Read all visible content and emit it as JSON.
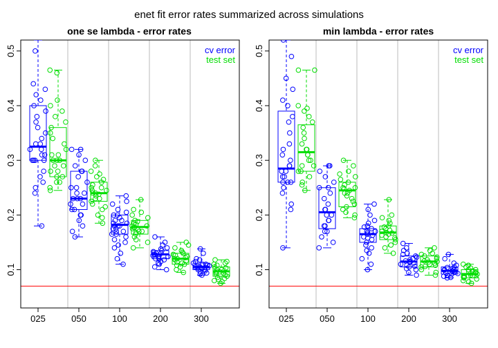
{
  "figure": {
    "title": "enet fit error rates summarized across simulations"
  },
  "colors": {
    "cv": "#0000ff",
    "test": "#00dd00",
    "baseline": "#ff0000",
    "divider": "#bbbbbb"
  },
  "chart_data": [
    {
      "type": "boxplot",
      "title": "one se lambda - error rates",
      "categories": [
        "025",
        "050",
        "100",
        "200",
        "300"
      ],
      "ylim": [
        0.03,
        0.52
      ],
      "yticks": [
        "0.1",
        "0.2",
        "0.3",
        "0.4",
        "0.5"
      ],
      "reference_line": 0.07,
      "legend": [
        "cv error",
        "test set"
      ],
      "series": [
        {
          "name": "cv error",
          "boxes": [
            {
              "min": 0.18,
              "q1": 0.3,
              "median": 0.325,
              "q3": 0.4,
              "max": 0.52,
              "points": [
                0.5,
                0.44,
                0.43,
                0.42,
                0.41,
                0.4,
                0.39,
                0.38,
                0.37,
                0.36,
                0.35,
                0.34,
                0.33,
                0.33,
                0.32,
                0.32,
                0.31,
                0.31,
                0.3,
                0.3,
                0.3,
                0.3,
                0.28,
                0.27,
                0.26,
                0.25,
                0.24,
                0.18
              ]
            },
            {
              "min": 0.16,
              "q1": 0.21,
              "median": 0.23,
              "q3": 0.28,
              "max": 0.32,
              "points": [
                0.32,
                0.32,
                0.31,
                0.3,
                0.29,
                0.28,
                0.28,
                0.27,
                0.26,
                0.25,
                0.25,
                0.24,
                0.24,
                0.23,
                0.23,
                0.23,
                0.22,
                0.22,
                0.21,
                0.21,
                0.2,
                0.2,
                0.19,
                0.18,
                0.17,
                0.16
              ]
            },
            {
              "min": 0.11,
              "q1": 0.165,
              "median": 0.182,
              "q3": 0.2,
              "max": 0.235,
              "points": [
                0.235,
                0.225,
                0.22,
                0.21,
                0.205,
                0.2,
                0.2,
                0.195,
                0.19,
                0.19,
                0.185,
                0.185,
                0.18,
                0.18,
                0.18,
                0.175,
                0.175,
                0.17,
                0.17,
                0.165,
                0.165,
                0.16,
                0.155,
                0.15,
                0.145,
                0.14,
                0.13,
                0.12,
                0.11
              ]
            },
            {
              "min": 0.1,
              "q1": 0.12,
              "median": 0.128,
              "q3": 0.135,
              "max": 0.16,
              "points": [
                0.16,
                0.15,
                0.145,
                0.14,
                0.138,
                0.135,
                0.133,
                0.13,
                0.13,
                0.128,
                0.127,
                0.126,
                0.125,
                0.124,
                0.122,
                0.12,
                0.12,
                0.118,
                0.115,
                0.112,
                0.11,
                0.105,
                0.1
              ]
            },
            {
              "min": 0.09,
              "q1": 0.1,
              "median": 0.105,
              "q3": 0.112,
              "max": 0.138,
              "points": [
                0.138,
                0.13,
                0.12,
                0.118,
                0.115,
                0.112,
                0.11,
                0.11,
                0.108,
                0.107,
                0.106,
                0.105,
                0.105,
                0.104,
                0.103,
                0.102,
                0.1,
                0.1,
                0.098,
                0.096,
                0.094,
                0.092,
                0.09
              ]
            }
          ]
        },
        {
          "name": "test set",
          "boxes": [
            {
              "min": 0.245,
              "q1": 0.27,
              "median": 0.3,
              "q3": 0.36,
              "max": 0.465,
              "points": [
                0.465,
                0.46,
                0.41,
                0.4,
                0.39,
                0.38,
                0.37,
                0.36,
                0.35,
                0.34,
                0.33,
                0.32,
                0.31,
                0.31,
                0.3,
                0.3,
                0.3,
                0.29,
                0.29,
                0.28,
                0.28,
                0.27,
                0.27,
                0.26,
                0.26,
                0.25,
                0.245
              ]
            },
            {
              "min": 0.185,
              "q1": 0.225,
              "median": 0.24,
              "q3": 0.26,
              "max": 0.3,
              "points": [
                0.3,
                0.29,
                0.28,
                0.275,
                0.27,
                0.265,
                0.26,
                0.255,
                0.25,
                0.25,
                0.245,
                0.245,
                0.24,
                0.24,
                0.238,
                0.235,
                0.23,
                0.23,
                0.225,
                0.22,
                0.215,
                0.21,
                0.2,
                0.195,
                0.185
              ]
            },
            {
              "min": 0.14,
              "q1": 0.165,
              "median": 0.178,
              "q3": 0.19,
              "max": 0.228,
              "points": [
                0.228,
                0.21,
                0.205,
                0.2,
                0.195,
                0.19,
                0.188,
                0.185,
                0.183,
                0.18,
                0.18,
                0.178,
                0.177,
                0.175,
                0.173,
                0.17,
                0.17,
                0.168,
                0.165,
                0.16,
                0.155,
                0.15,
                0.14
              ]
            },
            {
              "min": 0.095,
              "q1": 0.11,
              "median": 0.12,
              "q3": 0.13,
              "max": 0.15,
              "points": [
                0.15,
                0.145,
                0.14,
                0.135,
                0.132,
                0.13,
                0.128,
                0.126,
                0.124,
                0.122,
                0.12,
                0.12,
                0.118,
                0.116,
                0.114,
                0.112,
                0.11,
                0.108,
                0.105,
                0.1,
                0.095
              ]
            },
            {
              "min": 0.075,
              "q1": 0.088,
              "median": 0.097,
              "q3": 0.105,
              "max": 0.118,
              "points": [
                0.118,
                0.115,
                0.112,
                0.11,
                0.108,
                0.105,
                0.103,
                0.1,
                0.1,
                0.098,
                0.097,
                0.096,
                0.095,
                0.094,
                0.092,
                0.09,
                0.088,
                0.086,
                0.084,
                0.082,
                0.08,
                0.078,
                0.075
              ]
            }
          ]
        }
      ]
    },
    {
      "type": "boxplot",
      "title": "min lambda - error rates",
      "categories": [
        "025",
        "050",
        "100",
        "200",
        "300"
      ],
      "ylim": [
        0.03,
        0.52
      ],
      "yticks": [
        "0.1",
        "0.2",
        "0.3",
        "0.4",
        "0.5"
      ],
      "reference_line": 0.07,
      "legend": [
        "cv error",
        "test set"
      ],
      "series": [
        {
          "name": "cv error",
          "boxes": [
            {
              "min": 0.14,
              "q1": 0.26,
              "median": 0.285,
              "q3": 0.39,
              "max": 0.52,
              "points": [
                0.52,
                0.49,
                0.45,
                0.43,
                0.41,
                0.4,
                0.38,
                0.37,
                0.35,
                0.33,
                0.32,
                0.31,
                0.3,
                0.29,
                0.29,
                0.28,
                0.28,
                0.27,
                0.27,
                0.26,
                0.26,
                0.26,
                0.25,
                0.24,
                0.22,
                0.21,
                0.14
              ]
            },
            {
              "min": 0.14,
              "q1": 0.175,
              "median": 0.205,
              "q3": 0.25,
              "max": 0.29,
              "points": [
                0.29,
                0.29,
                0.28,
                0.27,
                0.26,
                0.25,
                0.25,
                0.24,
                0.23,
                0.22,
                0.21,
                0.21,
                0.2,
                0.2,
                0.19,
                0.19,
                0.18,
                0.18,
                0.17,
                0.17,
                0.16,
                0.15,
                0.14
              ]
            },
            {
              "min": 0.1,
              "q1": 0.15,
              "median": 0.165,
              "q3": 0.175,
              "max": 0.22,
              "points": [
                0.22,
                0.21,
                0.2,
                0.19,
                0.185,
                0.18,
                0.178,
                0.175,
                0.17,
                0.17,
                0.168,
                0.165,
                0.163,
                0.16,
                0.158,
                0.155,
                0.15,
                0.145,
                0.14,
                0.135,
                0.13,
                0.12,
                0.11,
                0.1
              ]
            },
            {
              "min": 0.09,
              "q1": 0.105,
              "median": 0.115,
              "q3": 0.125,
              "max": 0.148,
              "points": [
                0.148,
                0.14,
                0.135,
                0.13,
                0.128,
                0.125,
                0.123,
                0.12,
                0.118,
                0.116,
                0.115,
                0.114,
                0.112,
                0.11,
                0.108,
                0.106,
                0.105,
                0.102,
                0.1,
                0.095,
                0.09
              ]
            },
            {
              "min": 0.085,
              "q1": 0.092,
              "median": 0.098,
              "q3": 0.105,
              "max": 0.128,
              "points": [
                0.128,
                0.12,
                0.112,
                0.108,
                0.105,
                0.104,
                0.102,
                0.1,
                0.1,
                0.099,
                0.098,
                0.097,
                0.096,
                0.095,
                0.094,
                0.093,
                0.092,
                0.09,
                0.088,
                0.086,
                0.085
              ]
            }
          ]
        },
        {
          "name": "test set",
          "boxes": [
            {
              "min": 0.245,
              "q1": 0.28,
              "median": 0.315,
              "q3": 0.365,
              "max": 0.465,
              "points": [
                0.465,
                0.465,
                0.4,
                0.395,
                0.39,
                0.38,
                0.37,
                0.36,
                0.35,
                0.34,
                0.33,
                0.32,
                0.32,
                0.31,
                0.31,
                0.3,
                0.3,
                0.29,
                0.29,
                0.28,
                0.28,
                0.27,
                0.26,
                0.255,
                0.245
              ]
            },
            {
              "min": 0.195,
              "q1": 0.215,
              "median": 0.245,
              "q3": 0.26,
              "max": 0.3,
              "points": [
                0.3,
                0.29,
                0.28,
                0.275,
                0.27,
                0.265,
                0.26,
                0.255,
                0.25,
                0.25,
                0.248,
                0.245,
                0.24,
                0.24,
                0.235,
                0.23,
                0.225,
                0.22,
                0.215,
                0.21,
                0.205,
                0.2,
                0.195
              ]
            },
            {
              "min": 0.13,
              "q1": 0.155,
              "median": 0.168,
              "q3": 0.18,
              "max": 0.228,
              "points": [
                0.228,
                0.2,
                0.195,
                0.19,
                0.185,
                0.18,
                0.178,
                0.175,
                0.172,
                0.17,
                0.168,
                0.167,
                0.165,
                0.163,
                0.16,
                0.158,
                0.155,
                0.15,
                0.145,
                0.14,
                0.13
              ]
            },
            {
              "min": 0.09,
              "q1": 0.105,
              "median": 0.115,
              "q3": 0.125,
              "max": 0.14,
              "points": [
                0.14,
                0.135,
                0.13,
                0.128,
                0.125,
                0.123,
                0.12,
                0.118,
                0.116,
                0.115,
                0.114,
                0.112,
                0.11,
                0.108,
                0.106,
                0.105,
                0.1,
                0.095,
                0.09
              ]
            },
            {
              "min": 0.075,
              "q1": 0.085,
              "median": 0.092,
              "q3": 0.1,
              "max": 0.11,
              "points": [
                0.11,
                0.108,
                0.105,
                0.103,
                0.1,
                0.1,
                0.098,
                0.097,
                0.095,
                0.094,
                0.093,
                0.092,
                0.09,
                0.089,
                0.088,
                0.086,
                0.085,
                0.083,
                0.08,
                0.078,
                0.075
              ]
            }
          ]
        }
      ]
    }
  ]
}
